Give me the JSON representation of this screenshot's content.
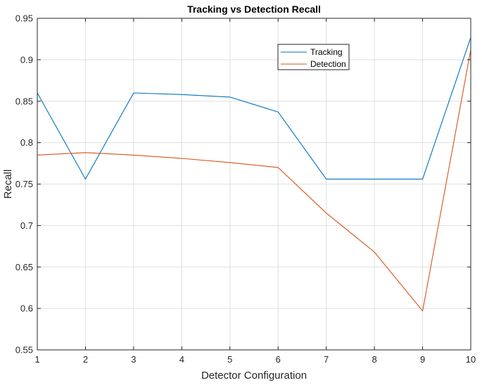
{
  "chart_data": {
    "type": "line",
    "title": "Tracking vs Detection Recall",
    "xlabel": "Detector Configuration",
    "ylabel": "Recall",
    "xlim": [
      1,
      10
    ],
    "ylim": [
      0.55,
      0.95
    ],
    "x": [
      1,
      2,
      3,
      4,
      5,
      6,
      7,
      8,
      9,
      10
    ],
    "xticks": [
      1,
      2,
      3,
      4,
      5,
      6,
      7,
      8,
      9,
      10
    ],
    "xtick_labels": [
      "1",
      "2",
      "3",
      "4",
      "5",
      "6",
      "7",
      "8",
      "9",
      "10"
    ],
    "yticks": [
      0.55,
      0.6,
      0.65,
      0.7,
      0.75,
      0.8,
      0.85,
      0.9,
      0.95
    ],
    "ytick_labels": [
      "0.55",
      "0.6",
      "0.65",
      "0.7",
      "0.75",
      "0.8",
      "0.85",
      "0.9",
      "0.95"
    ],
    "grid": true,
    "legend_position": "top-right (inside)",
    "series": [
      {
        "name": "Tracking",
        "color": "#0072BD",
        "values": [
          0.86,
          0.756,
          0.86,
          0.858,
          0.855,
          0.837,
          0.756,
          0.756,
          0.756,
          0.927
        ]
      },
      {
        "name": "Detection",
        "color": "#D95319",
        "values": [
          0.785,
          0.788,
          0.785,
          0.781,
          0.776,
          0.77,
          0.715,
          0.668,
          0.597,
          0.912
        ]
      }
    ]
  }
}
